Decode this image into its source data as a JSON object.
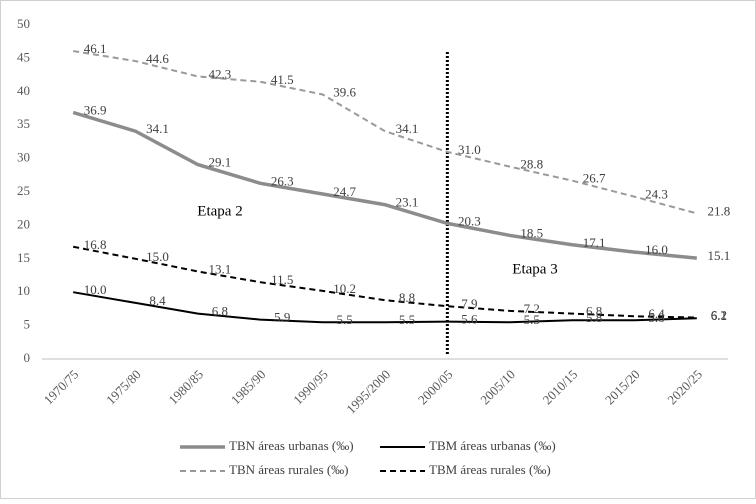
{
  "chart_data": {
    "type": "line",
    "categories": [
      "1970/75",
      "1975/80",
      "1980/85",
      "1985/90",
      "1990/95",
      "1995/2000",
      "2000/05",
      "2005/10",
      "2010/15",
      "2015/20",
      "2020/25"
    ],
    "series": [
      {
        "name": "TBN áreas urbanas (‰)",
        "color": "#8c8c8c",
        "dash": false,
        "width": 3.5,
        "values": [
          36.9,
          34.1,
          29.1,
          26.3,
          24.7,
          23.1,
          20.3,
          18.5,
          17.1,
          16.0,
          15.1
        ],
        "value_labels": [
          "36.9",
          "34.1",
          "29.1",
          "26.3",
          "24.7",
          "23.1",
          "20.3",
          "18.5",
          "17.1",
          "16.0",
          "15.1"
        ]
      },
      {
        "name": "TBM áreas urbanas (‰)",
        "color": "#000000",
        "dash": false,
        "width": 2,
        "values": [
          10.0,
          8.4,
          6.8,
          5.9,
          5.5,
          5.5,
          5.6,
          5.5,
          5.8,
          5.8,
          6.1
        ],
        "value_labels": [
          "10.0",
          "8.4",
          "6.8",
          "5.9",
          "5.5",
          "5.5",
          "5.6",
          "5.5",
          "5.8",
          "5.8",
          "6.1"
        ]
      },
      {
        "name": "TBN áreas rurales (‰)",
        "color": "#999999",
        "dash": true,
        "width": 2,
        "values": [
          46.1,
          44.6,
          42.3,
          41.5,
          39.6,
          34.1,
          31.0,
          28.8,
          26.7,
          24.3,
          21.8
        ],
        "value_labels": [
          "46.1",
          "44.6",
          "42.3",
          "41.5",
          "39.6",
          "34.1",
          "31.0",
          "28.8",
          "26.7",
          "24.3",
          "21.8"
        ]
      },
      {
        "name": "TBM áreas rurales (‰)",
        "color": "#000000",
        "dash": true,
        "width": 2,
        "values": [
          16.8,
          15.0,
          13.1,
          11.5,
          10.2,
          8.8,
          7.9,
          7.2,
          6.8,
          6.4,
          6.2
        ],
        "value_labels": [
          "16.8",
          "15.0",
          "13.1",
          "11.5",
          "10.2",
          "8.8",
          "7.9",
          "7.2",
          "6.8",
          "6.4",
          "6.2"
        ]
      }
    ],
    "annotations": [
      "Etapa 2",
      "Etapa 3"
    ],
    "ylim": [
      0,
      50
    ],
    "yticks": [
      0,
      5,
      10,
      15,
      20,
      25,
      30,
      35,
      40,
      45,
      50
    ],
    "grid": false
  }
}
